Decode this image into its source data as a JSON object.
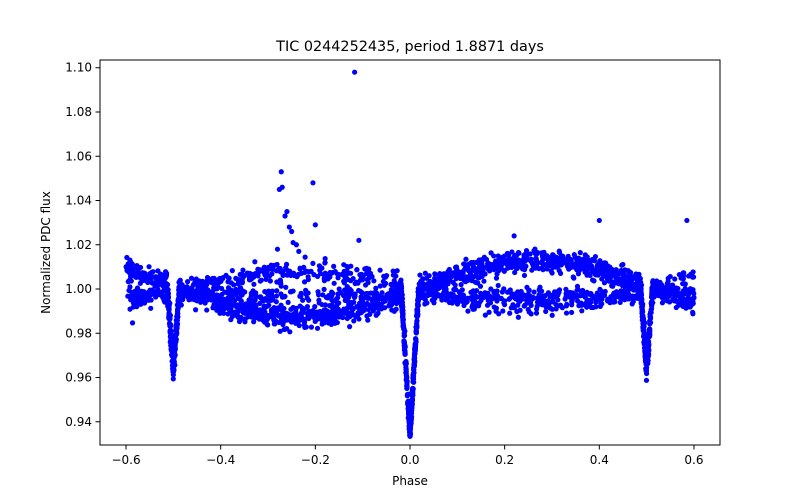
{
  "chart_data": {
    "type": "scatter",
    "title": "TIC 0244252435, period 1.8871 days",
    "xlabel": "Phase",
    "ylabel": "Normalized PDC flux",
    "xlim": [
      -0.655,
      0.655
    ],
    "ylim": [
      0.9295,
      1.1035
    ],
    "xticks": [
      -0.6,
      -0.4,
      -0.2,
      0.0,
      0.2,
      0.4,
      0.6
    ],
    "xtick_labels": [
      "−0.6",
      "−0.4",
      "−0.2",
      "0.0",
      "0.2",
      "0.4",
      "0.6"
    ],
    "yticks": [
      0.94,
      0.96,
      0.98,
      1.0,
      1.02,
      1.04,
      1.06,
      1.08,
      1.1
    ],
    "ytick_labels": [
      "0.94",
      "0.96",
      "0.98",
      "1.00",
      "1.02",
      "1.04",
      "1.06",
      "1.08",
      "1.10"
    ],
    "grid": false,
    "marker_color": "#0000ff",
    "period_days": 1.8871,
    "phase_range": [
      -0.6,
      0.6
    ],
    "features": {
      "primary_eclipse": {
        "phase": 0.0,
        "min_flux": 0.936,
        "half_width_phase": 0.018
      },
      "secondary_eclipses": [
        {
          "phase": -0.5,
          "min_flux": 0.962,
          "half_width_phase": 0.012
        },
        {
          "phase": 0.5,
          "min_flux": 0.962,
          "half_width_phase": 0.012
        }
      ],
      "spot_wave_amplitude": 0.013,
      "scatter_sigma": 0.0025
    },
    "outliers": [
      {
        "x": -0.117,
        "y": 1.098
      },
      {
        "x": -0.272,
        "y": 1.053
      },
      {
        "x": -0.276,
        "y": 1.045
      },
      {
        "x": -0.27,
        "y": 1.046
      },
      {
        "x": -0.205,
        "y": 1.048
      },
      {
        "x": -0.26,
        "y": 1.035
      },
      {
        "x": -0.264,
        "y": 1.033
      },
      {
        "x": -0.255,
        "y": 1.028
      },
      {
        "x": -0.25,
        "y": 1.026
      },
      {
        "x": -0.2,
        "y": 1.029
      },
      {
        "x": -0.247,
        "y": 1.021
      },
      {
        "x": -0.24,
        "y": 1.02
      },
      {
        "x": -0.108,
        "y": 1.022
      },
      {
        "x": -0.28,
        "y": 1.018
      },
      {
        "x": -0.235,
        "y": 1.017
      },
      {
        "x": -0.14,
        "y": 1.011
      },
      {
        "x": -0.105,
        "y": 1.004
      },
      {
        "x": 0.4,
        "y": 1.031
      },
      {
        "x": 0.585,
        "y": 1.031
      },
      {
        "x": 0.22,
        "y": 1.024
      }
    ]
  }
}
